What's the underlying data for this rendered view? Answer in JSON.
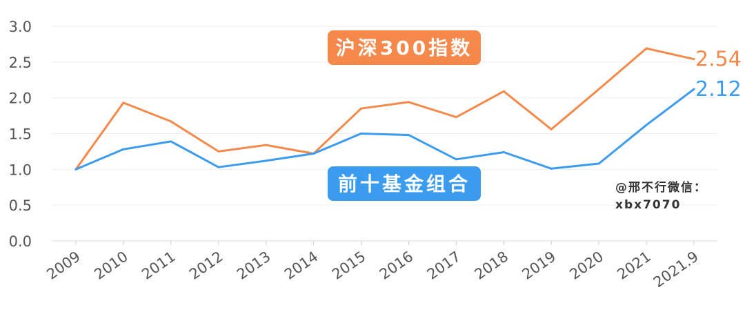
{
  "chart_data": {
    "type": "line",
    "title": "",
    "xlabel": "",
    "ylabel": "",
    "categories": [
      "2009",
      "2010",
      "2011",
      "2012",
      "2013",
      "2014",
      "2015",
      "2016",
      "2017",
      "2018",
      "2019",
      "2020",
      "2021",
      "2021.9"
    ],
    "ylim": [
      0,
      3.0
    ],
    "yticks": [
      "0.0",
      "0.5",
      "1.0",
      "1.5",
      "2.0",
      "2.5",
      "3.0"
    ],
    "grid": true,
    "series": [
      {
        "name": "沪深300指数",
        "color": "#F4894B",
        "values": [
          1.0,
          1.93,
          1.67,
          1.25,
          1.34,
          1.22,
          1.85,
          1.94,
          1.73,
          2.09,
          1.56,
          2.12,
          2.69,
          2.54
        ],
        "end_label": "2.54"
      },
      {
        "name": "前十基金组合",
        "color": "#3B9BEF",
        "values": [
          1.0,
          1.28,
          1.39,
          1.03,
          1.12,
          1.22,
          1.5,
          1.48,
          1.14,
          1.24,
          1.01,
          1.08,
          1.62,
          2.12
        ],
        "end_label": "2.12"
      }
    ],
    "annotations": {
      "watermark_line1": "@邢不行微信：",
      "watermark_line2": "xbx7070"
    }
  }
}
